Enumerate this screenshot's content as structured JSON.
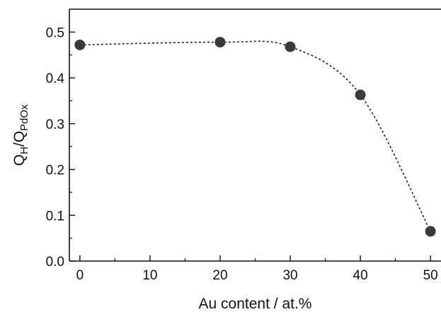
{
  "chart_data": {
    "type": "scatter",
    "xlabel": "Au content / at.%",
    "ylabel": {
      "parts": [
        {
          "text": "Q",
          "sub": false
        },
        {
          "text": "H",
          "sub": true
        },
        {
          "text": "/Q",
          "sub": false
        },
        {
          "text": "PdOx",
          "sub": true
        }
      ]
    },
    "xlim": [
      -1.5,
      51.5
    ],
    "ylim": [
      0.0,
      0.55
    ],
    "x_ticks": [
      0,
      10,
      20,
      30,
      40,
      50
    ],
    "x_tick_labels": [
      "0",
      "10",
      "20",
      "30",
      "40",
      "50"
    ],
    "x_minor_ticks": [
      5,
      15,
      25,
      35,
      45
    ],
    "y_ticks": [
      0.0,
      0.1,
      0.2,
      0.3,
      0.4,
      0.5
    ],
    "y_tick_labels": [
      "0.0",
      "0.1",
      "0.2",
      "0.3",
      "0.4",
      "0.5"
    ],
    "y_minor_ticks": [
      0.05,
      0.15,
      0.25,
      0.35,
      0.45
    ],
    "grid": false,
    "legend": "none",
    "series": [
      {
        "x": [
          0,
          20,
          30,
          40,
          50
        ],
        "y": [
          0.472,
          0.478,
          0.468,
          0.363,
          0.065
        ],
        "marker_color": "#3a3a3a",
        "line_style": "dotted",
        "line_color": "#222222"
      }
    ]
  }
}
